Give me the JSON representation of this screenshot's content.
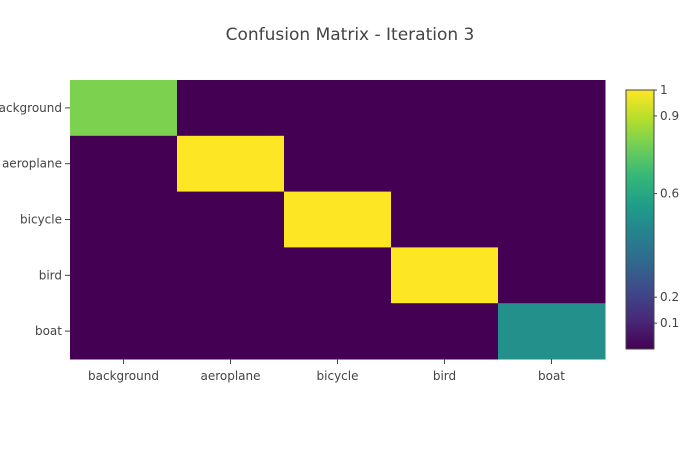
{
  "chart_data": {
    "type": "heatmap",
    "title": "Confusion Matrix - Iteration 3",
    "xlabel": "",
    "ylabel": "",
    "x_categories": [
      "background",
      "aeroplane",
      "bicycle",
      "bird",
      "boat"
    ],
    "y_categories": [
      "background",
      "aeroplane",
      "bicycle",
      "bird",
      "boat"
    ],
    "z": [
      [
        0.8,
        0,
        0,
        0,
        0
      ],
      [
        0,
        1,
        0,
        0,
        0
      ],
      [
        0,
        0,
        1,
        0,
        0
      ],
      [
        0,
        0,
        0,
        1,
        0
      ],
      [
        0,
        0,
        0,
        0,
        0.5
      ]
    ],
    "zrange": [
      0,
      1
    ],
    "colorscale": "Viridis",
    "colorbar": {
      "ticks": [
        0.1,
        0.2,
        0.6,
        0.9,
        1
      ],
      "tick_labels": [
        "0.1",
        "0.2",
        "0.6",
        "0.9",
        "1"
      ]
    }
  }
}
